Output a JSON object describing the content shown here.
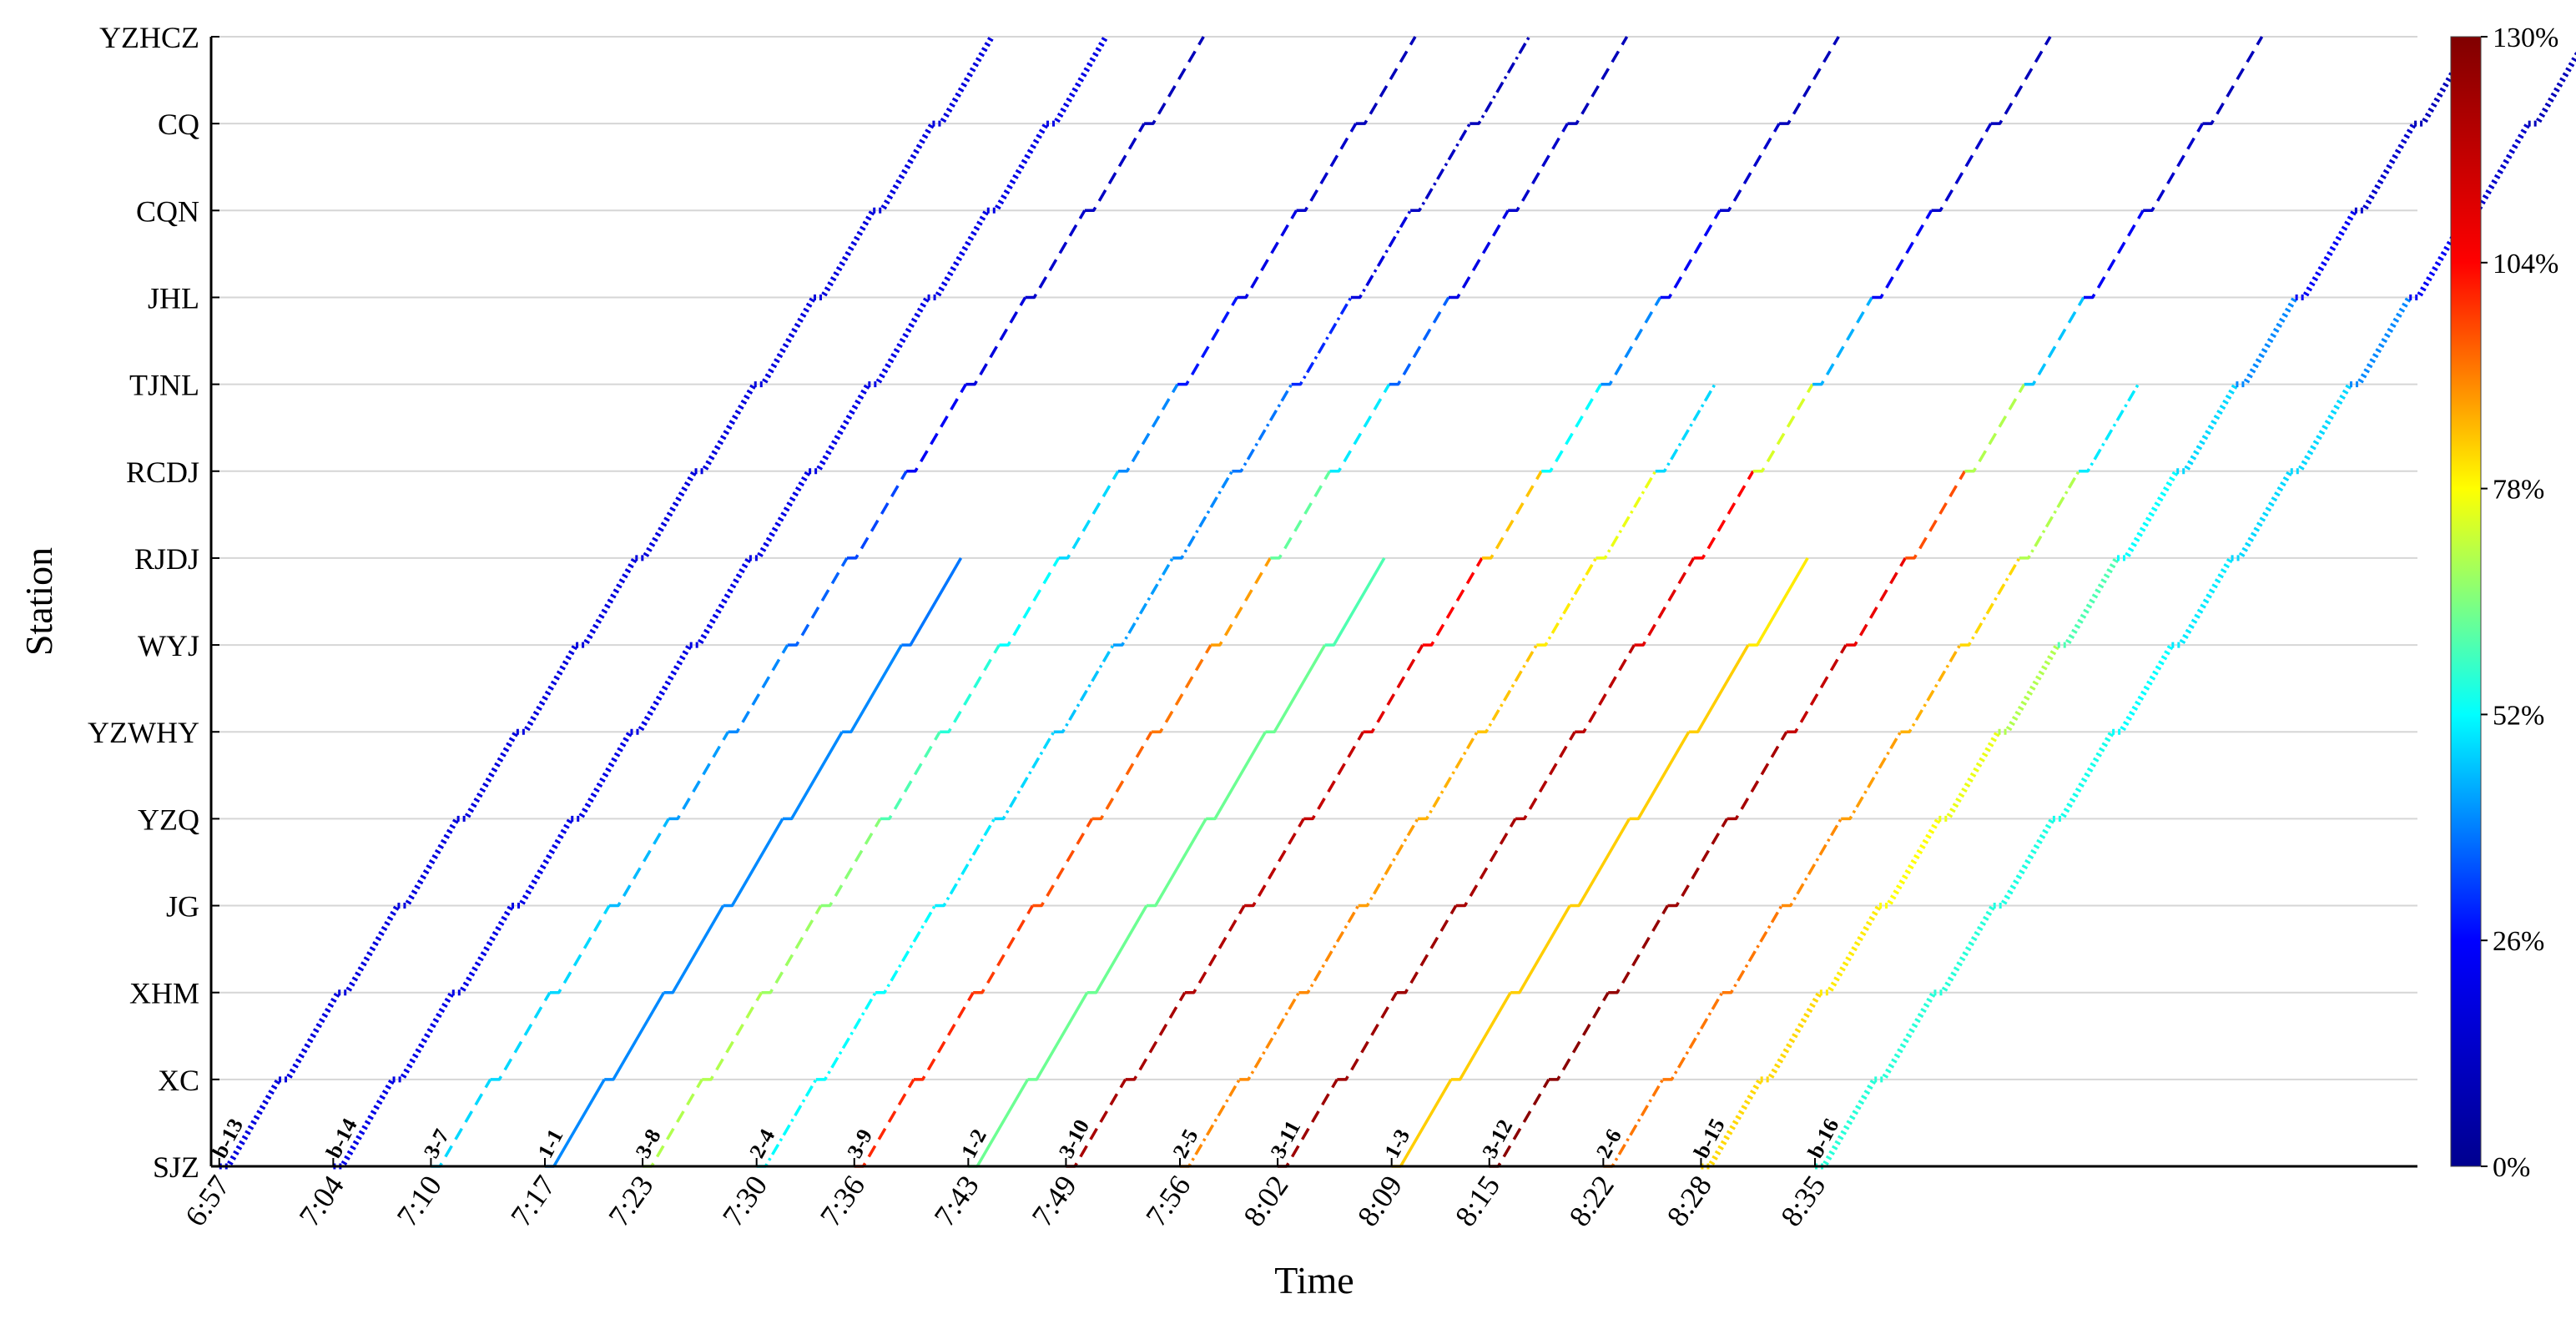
{
  "chart_data": {
    "type": "line",
    "xlabel": "Time",
    "ylabel": "Station",
    "stations": [
      "SJZ",
      "XC",
      "XHM",
      "JG",
      "YZQ",
      "YZWHY",
      "WYJ",
      "RJDJ",
      "RCDJ",
      "TJNL",
      "JHL",
      "CQN",
      "CQ",
      "YZHCZ"
    ],
    "time_ticks": [
      "6:57",
      "7:04",
      "7:10",
      "7:17",
      "7:23",
      "7:30",
      "7:36",
      "7:43",
      "7:49",
      "7:56",
      "8:02",
      "8:09",
      "8:15",
      "8:22",
      "8:28",
      "8:35"
    ],
    "time_tick_minutes": [
      417,
      424,
      430,
      437,
      443,
      450,
      456,
      463,
      469,
      476,
      482,
      489,
      495,
      502,
      508,
      515
    ],
    "xlim_minutes": [
      416.5,
      552
    ],
    "colorbar": {
      "ticks": [
        "0%",
        "26%",
        "52%",
        "78%",
        "104%",
        "130%"
      ],
      "range": [
        0,
        130
      ],
      "colormap": [
        "#00008f",
        "#0000ff",
        "#00ffff",
        "#ffff00",
        "#ff0000",
        "#800000"
      ]
    },
    "grid": "horizontal",
    "train_styles": {
      "b": "dotted",
      "3": "dashed",
      "2": "dashdot",
      "1": "solid"
    },
    "series": [
      {
        "name": "b-13",
        "depart": "6:57",
        "end_station": "YZHCZ",
        "load_pct": [
          18,
          18,
          18,
          18,
          18,
          18,
          18,
          18,
          18,
          18,
          18,
          18,
          18
        ]
      },
      {
        "name": "b-14",
        "depart": "7:04",
        "end_station": "YZHCZ",
        "load_pct": [
          20,
          20,
          20,
          20,
          20,
          20,
          20,
          20,
          20,
          20,
          20,
          20,
          20
        ]
      },
      {
        "name": "3-7",
        "depart": "7:10",
        "end_station": "YZHCZ",
        "load_pct": [
          48,
          48,
          48,
          45,
          42,
          40,
          36,
          33,
          24,
          18,
          14,
          12,
          10
        ]
      },
      {
        "name": "1-1",
        "depart": "7:17",
        "end_station": "RJDJ",
        "load_pct": [
          40,
          40,
          40,
          40,
          40,
          40,
          38
        ]
      },
      {
        "name": "3-8",
        "depart": "7:23",
        "end_station": "YZHCZ",
        "load_pct": [
          70,
          70,
          68,
          66,
          60,
          56,
          52,
          48,
          40,
          28,
          20,
          14,
          10
        ]
      },
      {
        "name": "2-4",
        "depart": "7:30",
        "end_station": "YZHCZ",
        "load_pct": [
          52,
          52,
          52,
          50,
          48,
          46,
          42,
          40,
          38,
          30,
          18,
          12,
          10
        ]
      },
      {
        "name": "3-9",
        "depart": "7:36",
        "end_station": "YZHCZ",
        "load_pct": [
          100,
          100,
          98,
          96,
          94,
          92,
          88,
          62,
          50,
          36,
          20,
          14,
          10
        ]
      },
      {
        "name": "1-2",
        "depart": "7:43",
        "end_station": "RJDJ",
        "load_pct": [
          63,
          63,
          63,
          63,
          63,
          63,
          60
        ]
      },
      {
        "name": "3-10",
        "depart": "7:49",
        "end_station": "YZHCZ",
        "load_pct": [
          122,
          122,
          120,
          118,
          116,
          110,
          104,
          84,
          52,
          40,
          24,
          14,
          10
        ]
      },
      {
        "name": "2-5",
        "depart": "7:56",
        "end_station": "TJNL",
        "load_pct": [
          90,
          90,
          90,
          88,
          86,
          84,
          80,
          76,
          48
        ]
      },
      {
        "name": "3-11",
        "depart": "8:02",
        "end_station": "YZHCZ",
        "load_pct": [
          124,
          124,
          124,
          122,
          120,
          118,
          110,
          104,
          74,
          44,
          24,
          14,
          10
        ]
      },
      {
        "name": "1-3",
        "depart": "8:09",
        "end_station": "RJDJ",
        "load_pct": [
          83,
          83,
          83,
          83,
          83,
          83,
          80
        ]
      },
      {
        "name": "3-12",
        "depart": "8:15",
        "end_station": "YZHCZ",
        "load_pct": [
          128,
          128,
          126,
          124,
          122,
          116,
          108,
          96,
          70,
          46,
          24,
          14,
          10
        ]
      },
      {
        "name": "2-6",
        "depart": "8:22",
        "end_station": "TJNL",
        "load_pct": [
          92,
          92,
          92,
          90,
          88,
          86,
          82,
          70,
          50
        ]
      },
      {
        "name": "b-15",
        "depart": "8:28",
        "end_station": "YZHCZ",
        "load_pct": [
          82,
          82,
          80,
          78,
          76,
          70,
          60,
          52,
          48,
          40,
          24,
          14,
          10
        ]
      },
      {
        "name": "b-16",
        "depart": "8:35",
        "end_station": "YZHCZ",
        "load_pct": [
          56,
          56,
          56,
          55,
          54,
          52,
          50,
          48,
          48,
          40,
          24,
          14,
          10
        ]
      }
    ]
  }
}
